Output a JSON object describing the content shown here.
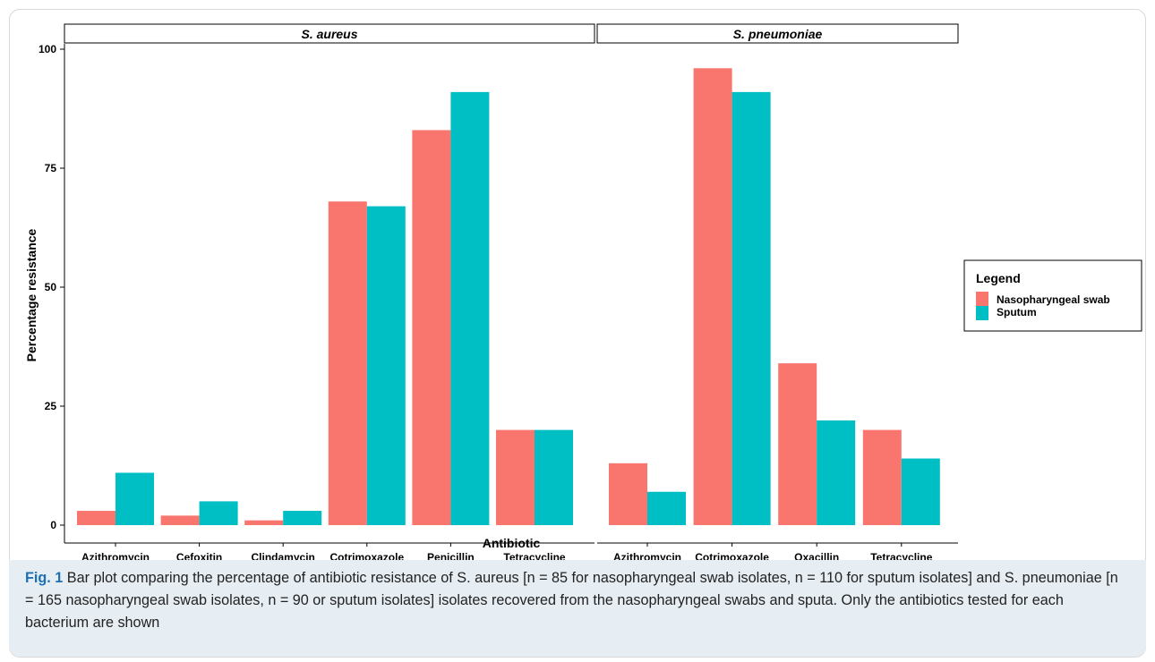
{
  "chart_data": {
    "type": "bar",
    "ylabel": "Percentage resistance",
    "xlabel": "Antibiotic",
    "ylim": [
      0,
      100
    ],
    "yticks": [
      0,
      25,
      50,
      75,
      100
    ],
    "legend": {
      "title": "Legend",
      "position": "right",
      "entries": [
        "Nasopharyngeal swab",
        "Sputum"
      ]
    },
    "series_colors": [
      "#f8766d",
      "#00bfc4"
    ],
    "grid": false,
    "panels": [
      {
        "title": "S. aureus",
        "categories": [
          "Azithromycin",
          "Cefoxitin",
          "Clindamycin",
          "Cotrimoxazole",
          "Penicillin",
          "Tetracycline"
        ],
        "series": [
          {
            "name": "Nasopharyngeal swab",
            "values": [
              3,
              2,
              1,
              68,
              83,
              20
            ]
          },
          {
            "name": "Sputum",
            "values": [
              11,
              5,
              3,
              67,
              91,
              20
            ]
          }
        ]
      },
      {
        "title": "S. pneumoniae",
        "categories": [
          "Azithromycin",
          "Cotrimoxazole",
          "Oxacillin",
          "Tetracycline"
        ],
        "series": [
          {
            "name": "Nasopharyngeal swab",
            "values": [
              13,
              96,
              34,
              20
            ]
          },
          {
            "name": "Sputum",
            "values": [
              7,
              91,
              22,
              14
            ]
          }
        ]
      }
    ]
  },
  "caption": {
    "label": "Fig. 1",
    "text": "Bar plot comparing the percentage of antibiotic resistance of S. aureus [n = 85 for nasopharyngeal swab isolates, n = 110 for sputum isolates] and S. pneumoniae [n = 165 nasopharyngeal swab isolates, n = 90 or sputum isolates] isolates recovered from the nasopharyngeal swabs and sputa. Only the antibiotics tested for each bacterium are shown"
  }
}
